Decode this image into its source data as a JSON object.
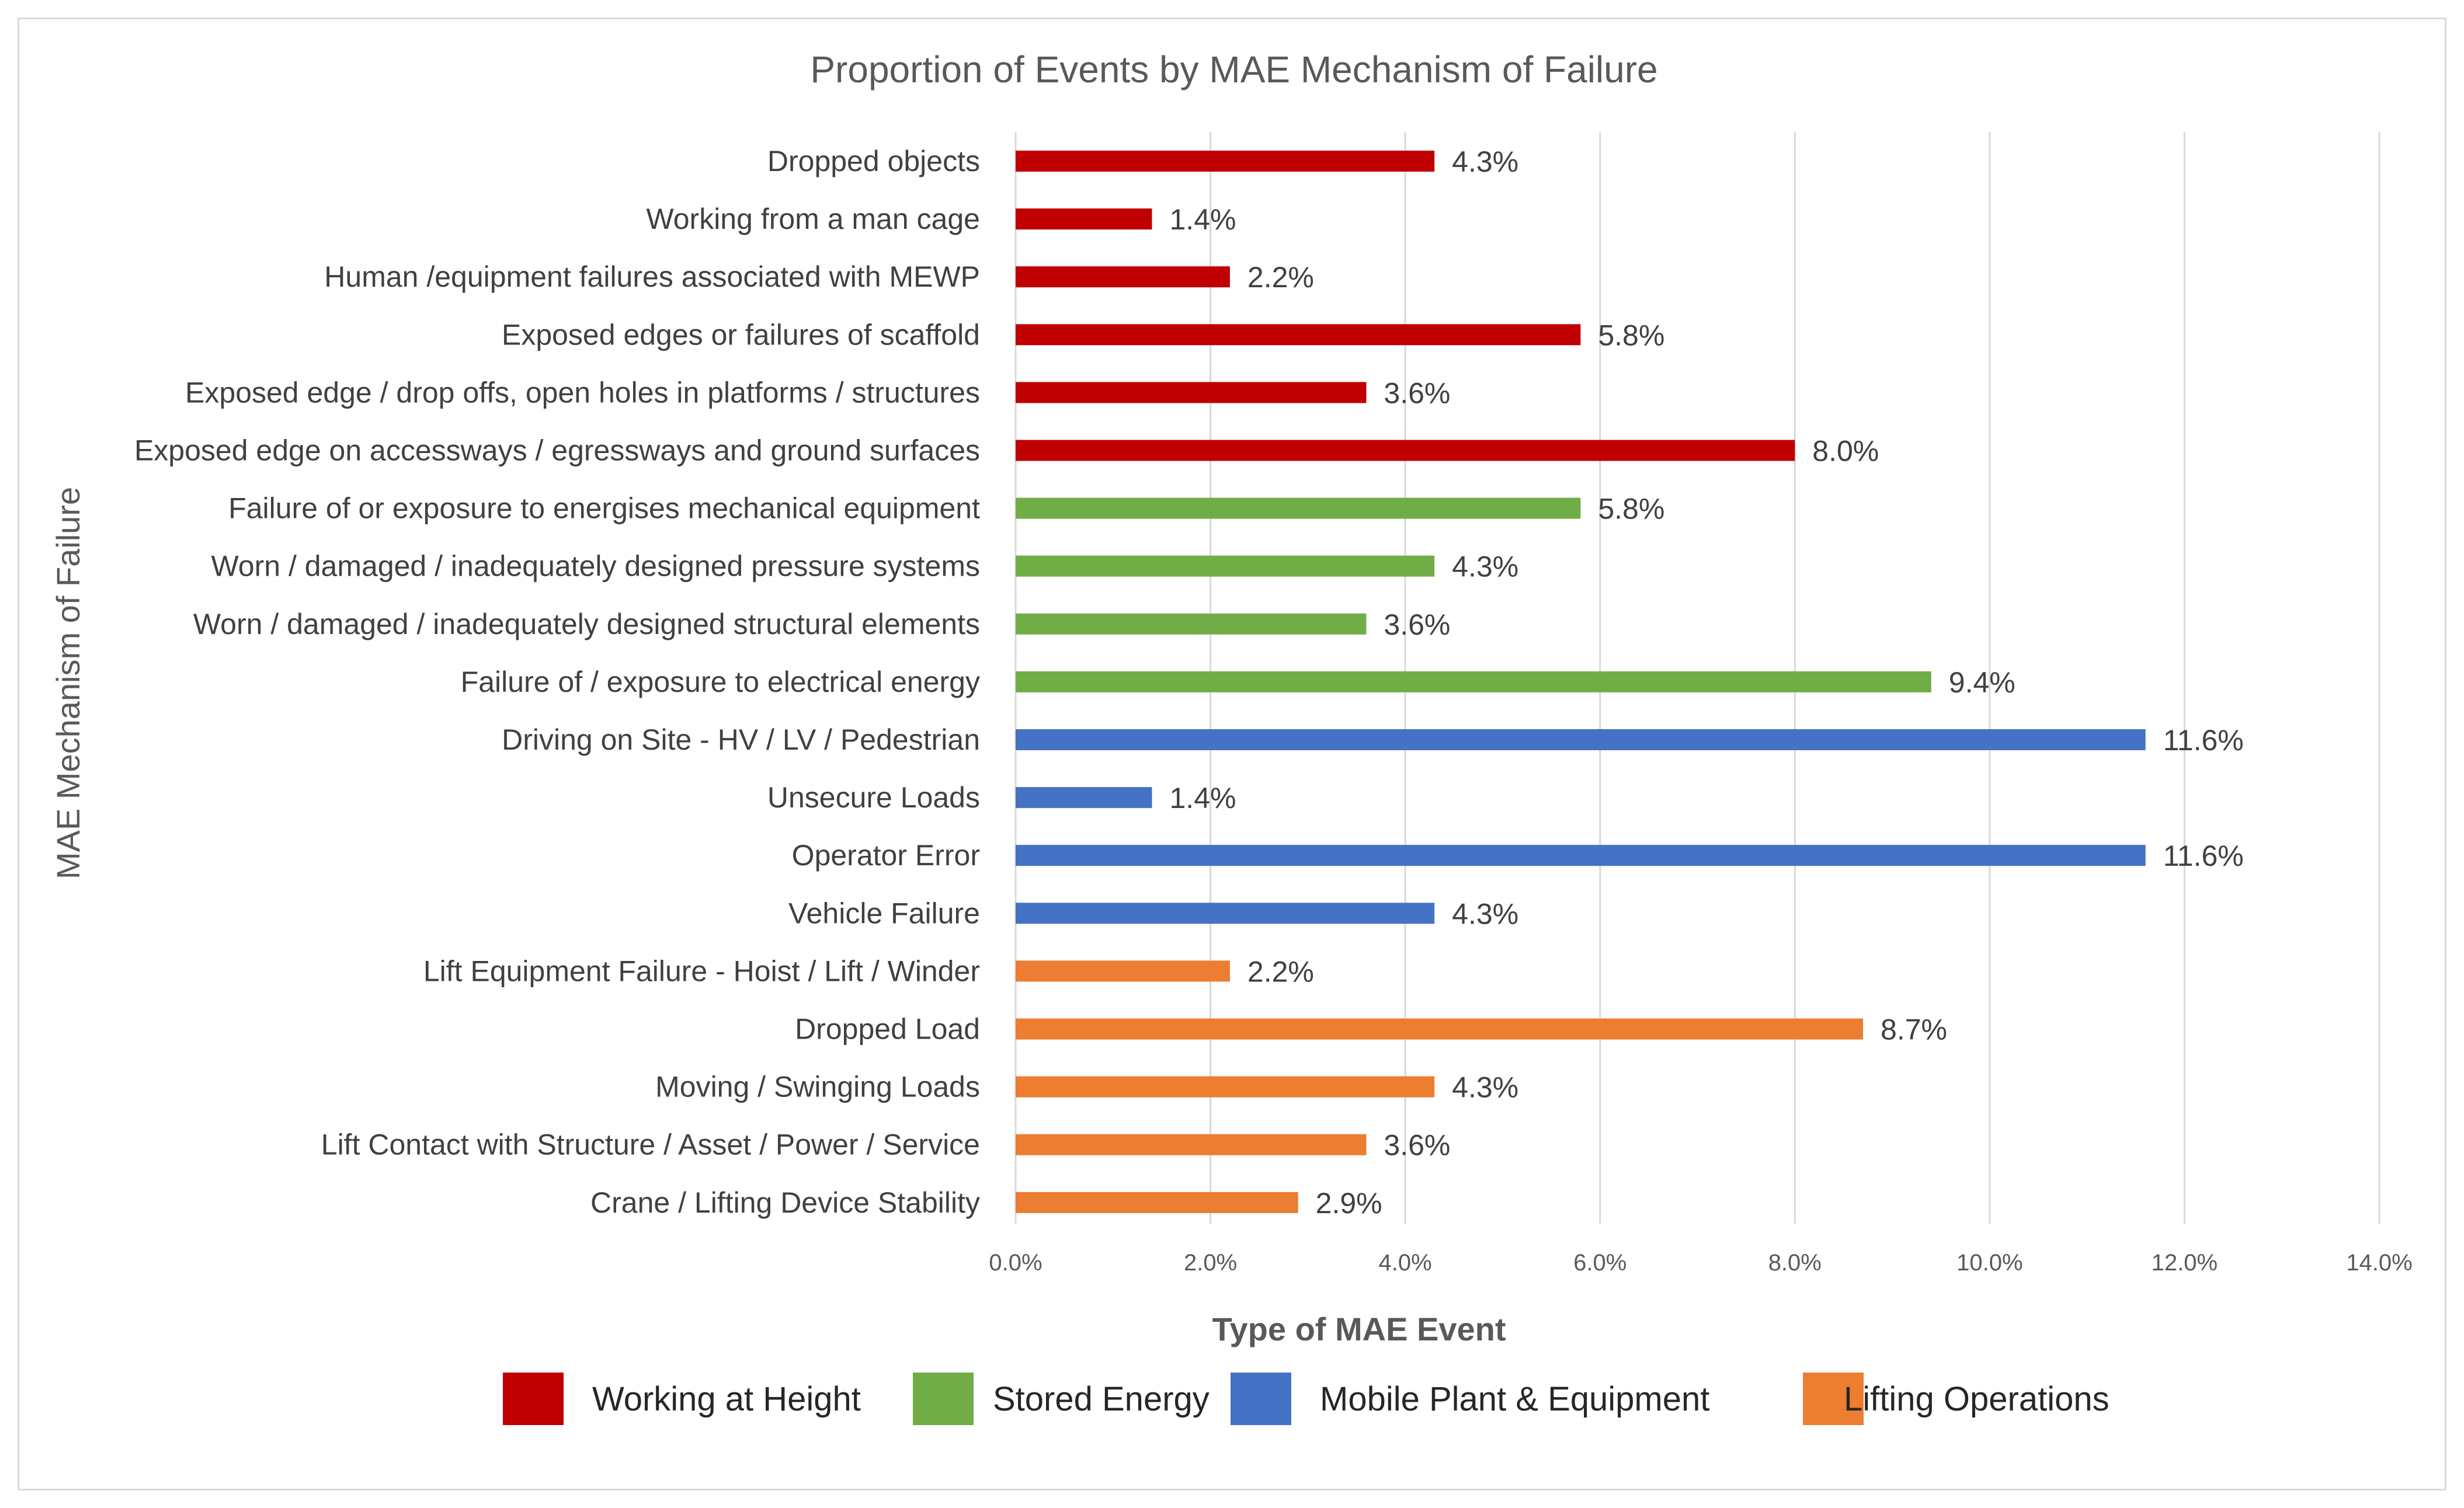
{
  "chart_data": {
    "type": "bar",
    "orientation": "horizontal",
    "title": "Proportion of Events by MAE Mechanism of Failure",
    "xlabel": "Type of MAE Event",
    "ylabel": "MAE Mechanism of Failure",
    "xlim": [
      0,
      14
    ],
    "xticks": [
      0,
      2,
      4,
      6,
      8,
      10,
      12,
      14
    ],
    "xtick_labels": [
      "0.0%",
      "2.0%",
      "4.0%",
      "6.0%",
      "8.0%",
      "10.0%",
      "12.0%",
      "14.0%"
    ],
    "grid": "vertical",
    "legend_position": "bottom",
    "series": [
      {
        "name": "Working at Height",
        "color": "#c00000"
      },
      {
        "name": "Stored Energy",
        "color": "#70ad47"
      },
      {
        "name": "Mobile Plant & Equipment",
        "color": "#4472c4"
      },
      {
        "name": "Lifting Operations",
        "color": "#ed7d31"
      }
    ],
    "categories": [
      {
        "label": "Dropped objects",
        "value": 4.3,
        "value_label": "4.3%",
        "series": 0
      },
      {
        "label": "Working from a man cage",
        "value": 1.4,
        "value_label": "1.4%",
        "series": 0
      },
      {
        "label": "Human /equipment failures associated with MEWP",
        "value": 2.2,
        "value_label": "2.2%",
        "series": 0
      },
      {
        "label": "Exposed edges or failures of scaffold",
        "value": 5.8,
        "value_label": "5.8%",
        "series": 0
      },
      {
        "label": "Exposed edge / drop offs, open holes in platforms / structures",
        "value": 3.6,
        "value_label": "3.6%",
        "series": 0
      },
      {
        "label": "Exposed edge on accessways / egressways and ground surfaces",
        "value": 8.0,
        "value_label": "8.0%",
        "series": 0
      },
      {
        "label": "Failure of or exposure to energises mechanical equipment",
        "value": 5.8,
        "value_label": "5.8%",
        "series": 1
      },
      {
        "label": "Worn / damaged / inadequately designed pressure systems",
        "value": 4.3,
        "value_label": "4.3%",
        "series": 1
      },
      {
        "label": "Worn / damaged / inadequately designed structural elements",
        "value": 3.6,
        "value_label": "3.6%",
        "series": 1
      },
      {
        "label": "Failure of / exposure to electrical energy",
        "value": 9.4,
        "value_label": "9.4%",
        "series": 1
      },
      {
        "label": "Driving on Site - HV / LV / Pedestrian",
        "value": 11.6,
        "value_label": "11.6%",
        "series": 2
      },
      {
        "label": "Unsecure Loads",
        "value": 1.4,
        "value_label": "1.4%",
        "series": 2
      },
      {
        "label": "Operator Error",
        "value": 11.6,
        "value_label": "11.6%",
        "series": 2
      },
      {
        "label": "Vehicle Failure",
        "value": 4.3,
        "value_label": "4.3%",
        "series": 2
      },
      {
        "label": "Lift Equipment Failure - Hoist / Lift / Winder",
        "value": 2.2,
        "value_label": "2.2%",
        "series": 3
      },
      {
        "label": "Dropped Load",
        "value": 8.7,
        "value_label": "8.7%",
        "series": 3
      },
      {
        "label": "Moving / Swinging Loads",
        "value": 4.3,
        "value_label": "4.3%",
        "series": 3
      },
      {
        "label": "Lift Contact with Structure / Asset / Power / Service",
        "value": 3.6,
        "value_label": "3.6%",
        "series": 3
      },
      {
        "label": "Crane / Lifting Device Stability",
        "value": 2.9,
        "value_label": "2.9%",
        "series": 3
      }
    ]
  }
}
